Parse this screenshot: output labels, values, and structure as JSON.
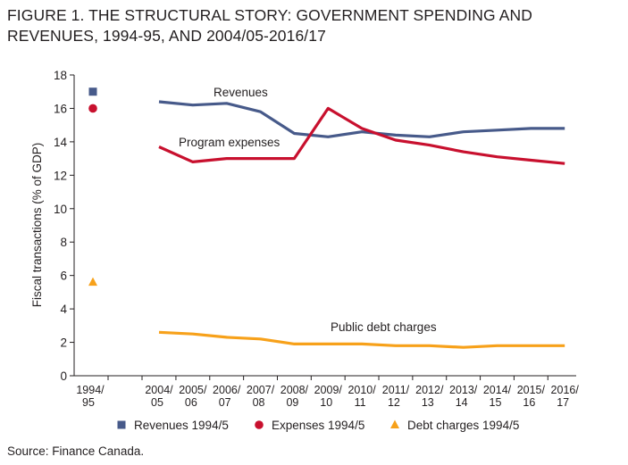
{
  "figure": {
    "title": "FIGURE 1. THE STRUCTURAL STORY: GOVERNMENT SPENDING AND REVENUES, 1994-95, AND 2004/05-2016/17",
    "source": "Source: Finance Canada."
  },
  "chart_data": {
    "type": "line",
    "ylabel": "Fiscal transactions (% of GDP)",
    "ylim": [
      0,
      18
    ],
    "yticks": [
      0,
      2,
      4,
      6,
      8,
      10,
      12,
      14,
      16,
      18
    ],
    "categories": [
      [
        "1994/",
        "95"
      ],
      [
        "2004/",
        "05"
      ],
      [
        "2005/",
        "06"
      ],
      [
        "2006/",
        "07"
      ],
      [
        "2007/",
        "08"
      ],
      [
        "2008/",
        "09"
      ],
      [
        "2009/",
        "10"
      ],
      [
        "2010/",
        "11"
      ],
      [
        "2011/",
        "12"
      ],
      [
        "2012/",
        "13"
      ],
      [
        "2013/",
        "14"
      ],
      [
        "2014/",
        "15"
      ],
      [
        "2015/",
        "16"
      ],
      [
        "2016/",
        "17"
      ]
    ],
    "series": [
      {
        "name": "Revenues",
        "color": "#475a8a",
        "values": [
          null,
          16.4,
          16.2,
          16.3,
          15.8,
          14.5,
          14.3,
          14.6,
          14.4,
          14.3,
          14.6,
          14.7,
          14.8,
          14.8
        ]
      },
      {
        "name": "Program expenses",
        "color": "#c8102e",
        "values": [
          null,
          13.7,
          12.8,
          13.0,
          13.0,
          13.0,
          16.0,
          14.8,
          14.1,
          13.8,
          13.4,
          13.1,
          12.9,
          12.7
        ]
      },
      {
        "name": "Public debt charges",
        "color": "#f7a11a",
        "values": [
          null,
          2.6,
          2.5,
          2.3,
          2.2,
          1.9,
          1.9,
          1.9,
          1.8,
          1.8,
          1.7,
          1.8,
          1.8,
          1.8
        ]
      }
    ],
    "points_1994": [
      {
        "name": "Revenues 1994/5",
        "value": 17.0,
        "color": "#475a8a",
        "marker": "square"
      },
      {
        "name": "Expenses 1994/5",
        "value": 16.0,
        "color": "#c8102e",
        "marker": "circle"
      },
      {
        "name": "Debt charges 1994/5",
        "value": 5.6,
        "color": "#f7a11a",
        "marker": "triangle"
      }
    ],
    "annotations": [
      "Revenues",
      "Program expenses",
      "Public debt charges"
    ],
    "legend_position": "bottom",
    "grid": false
  }
}
